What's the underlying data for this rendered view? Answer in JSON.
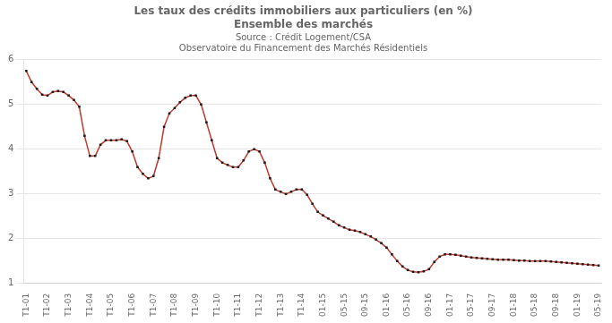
{
  "chart_data": {
    "type": "line",
    "title": [
      "Les taux des crédits immobiliers aux particuliers (en %)",
      "Ensemble des marchés"
    ],
    "subtitle": [
      "Source : Crédit Logement/CSA",
      "Observatoire du Financement des Marchés Résidentiels"
    ],
    "categories": [
      "T1-01",
      null,
      null,
      null,
      "T1-02",
      null,
      null,
      null,
      "T1-03",
      null,
      null,
      null,
      "T1-04",
      null,
      null,
      null,
      "T1-05",
      null,
      null,
      null,
      "T1-06",
      null,
      null,
      null,
      "T1-07",
      null,
      null,
      null,
      "T1-08",
      null,
      null,
      null,
      "T1-09",
      null,
      null,
      null,
      "T1-10",
      null,
      null,
      null,
      "T1-11",
      null,
      null,
      null,
      "T1-12",
      null,
      null,
      null,
      "T1-13",
      null,
      null,
      null,
      "T1-14",
      null,
      null,
      null,
      "01-15",
      null,
      null,
      null,
      "05-15",
      null,
      null,
      null,
      "09-15",
      null,
      null,
      null,
      "01-16",
      null,
      null,
      null,
      "05-16",
      null,
      null,
      null,
      "09-16",
      null,
      null,
      null,
      "01-17",
      null,
      null,
      null,
      "05-17",
      null,
      null,
      null,
      "09-17",
      null,
      null,
      null,
      "01-18",
      null,
      null,
      null,
      "05-18",
      null,
      null,
      null,
      "09-18",
      null,
      null,
      null,
      "01-19",
      null,
      null,
      null,
      "05-19"
    ],
    "series": [
      {
        "type": "line",
        "color": "#C0392B",
        "values": [
          5.75,
          5.5,
          5.35,
          5.22,
          5.2,
          5.28,
          5.3,
          5.28,
          5.2,
          5.1,
          4.95,
          4.3,
          3.85,
          3.85,
          4.1,
          4.2,
          4.2,
          4.2,
          4.22,
          4.18,
          3.95,
          3.6,
          3.45,
          3.35,
          3.4,
          3.8,
          4.5,
          4.8,
          4.92,
          5.05,
          5.15,
          5.2,
          5.2,
          5.0,
          4.6,
          4.2,
          3.8,
          3.7,
          3.65,
          3.6,
          3.6,
          3.75,
          3.95,
          4.0,
          3.95,
          3.7,
          3.35,
          3.1,
          3.05,
          3.0,
          3.05,
          3.1,
          3.1,
          2.98,
          2.78,
          2.6,
          2.52,
          2.45,
          2.38,
          2.3,
          2.25,
          2.2,
          2.18,
          2.15,
          2.1,
          2.05,
          1.98,
          1.9,
          1.8,
          1.65,
          1.5,
          1.38,
          1.3,
          1.26,
          1.25,
          1.27,
          1.32,
          1.48,
          1.6,
          1.65,
          1.65,
          1.64,
          1.62,
          1.6,
          1.58,
          1.57,
          1.56,
          1.55,
          1.54,
          1.53,
          1.53,
          1.53,
          1.52,
          1.51,
          1.51,
          1.5,
          1.5,
          1.5,
          1.5,
          1.49,
          1.48,
          1.47,
          1.46,
          1.45,
          1.44,
          1.43,
          1.42,
          1.41,
          1.4
        ]
      },
      {
        "type": "scatter",
        "marker": "square",
        "color": "#1a1a1a",
        "values": [
          5.75,
          5.5,
          5.35,
          5.22,
          5.2,
          5.28,
          5.3,
          5.28,
          5.2,
          5.1,
          4.95,
          4.3,
          3.85,
          3.85,
          4.1,
          4.2,
          4.2,
          4.2,
          4.22,
          4.18,
          3.95,
          3.6,
          3.45,
          3.35,
          3.4,
          3.8,
          4.5,
          4.8,
          4.92,
          5.05,
          5.15,
          5.2,
          5.2,
          5.0,
          4.6,
          4.2,
          3.8,
          3.7,
          3.65,
          3.6,
          3.6,
          3.75,
          3.95,
          4.0,
          3.95,
          3.7,
          3.35,
          3.1,
          3.05,
          3.0,
          3.05,
          3.1,
          3.1,
          2.98,
          2.78,
          2.6,
          2.52,
          2.45,
          2.38,
          2.3,
          2.25,
          2.2,
          2.18,
          2.15,
          2.1,
          2.05,
          1.98,
          1.9,
          1.8,
          1.65,
          1.5,
          1.38,
          1.3,
          1.26,
          1.25,
          1.27,
          1.32,
          1.48,
          1.6,
          1.65,
          1.65,
          1.64,
          1.62,
          1.6,
          1.58,
          1.57,
          1.56,
          1.55,
          1.54,
          1.53,
          1.53,
          1.53,
          1.52,
          1.51,
          1.51,
          1.5,
          1.5,
          1.5,
          1.5,
          1.49,
          1.48,
          1.47,
          1.46,
          1.45,
          1.44,
          1.43,
          1.42,
          1.41,
          1.4
        ]
      }
    ],
    "ylim": [
      1.0,
      6.0
    ],
    "yticks": [
      1,
      2,
      3,
      4,
      5,
      6
    ],
    "grid": "y"
  }
}
